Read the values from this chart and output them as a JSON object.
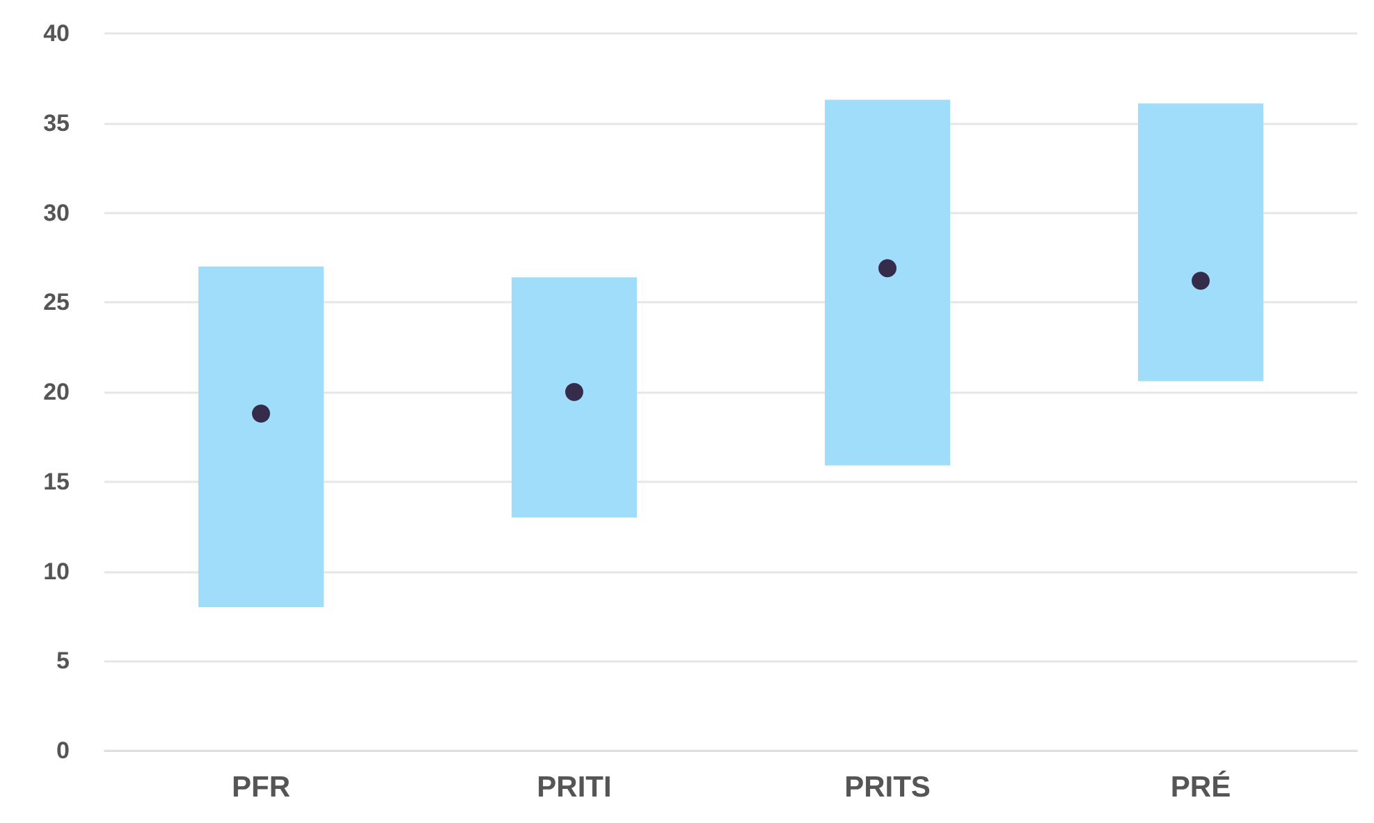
{
  "chart_data": {
    "type": "bar",
    "categories": [
      "PFR",
      "PRITI",
      "PRITS",
      "PRÉ"
    ],
    "series": [
      {
        "color": "#a0ddfb",
        "base": [
          8,
          13,
          15.9,
          20.6
        ],
        "values": [
          19,
          13.4,
          20.4,
          15.5
        ]
      },
      {
        "type": "scatter",
        "color": "#1a0020",
        "x": [
          "PFR",
          "PRITI",
          "PRITS",
          "PRÉ"
        ],
        "values": [
          18.8,
          20,
          26.9,
          26.2
        ]
      }
    ],
    "ylim": [
      0,
      40
    ],
    "yticks": [
      0,
      5,
      10,
      15,
      20,
      25,
      30,
      35,
      40
    ],
    "grid": "y",
    "marker": "circle"
  }
}
